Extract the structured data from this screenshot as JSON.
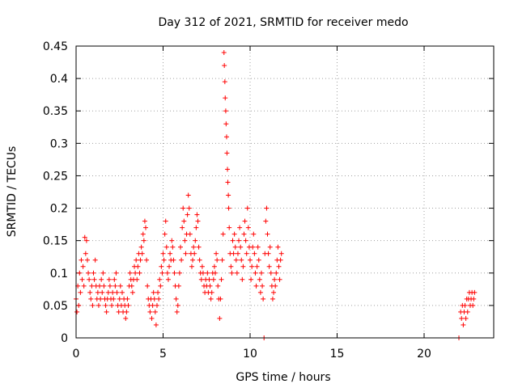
{
  "chart_data": {
    "type": "scatter",
    "title": "Day 312 of 2021, SRMTID for receiver medo",
    "xlabel": "GPS time / hours",
    "ylabel": "SRMTID / TECUs",
    "xlim": [
      0,
      24
    ],
    "ylim": [
      0,
      0.45
    ],
    "xticks": [
      0,
      5,
      10,
      15,
      20
    ],
    "xtick_labels": [
      "0",
      "5",
      "10",
      "15",
      "20"
    ],
    "yticks": [
      0,
      0.05,
      0.1,
      0.15,
      0.2,
      0.25,
      0.3,
      0.35,
      0.4,
      0.45
    ],
    "ytick_labels": [
      "0",
      "0.05",
      "0.1",
      "0.15",
      "0.2",
      "0.25",
      "0.3",
      "0.35",
      "0.4",
      "0.45"
    ],
    "grid": true,
    "marker": "+",
    "color": "#ff0000",
    "series": [
      {
        "name": "SRMTID",
        "points": [
          [
            0.0,
            0.06
          ],
          [
            0.05,
            0.04
          ],
          [
            0.1,
            0.08
          ],
          [
            0.15,
            0.05
          ],
          [
            0.2,
            0.1
          ],
          [
            0.25,
            0.07
          ],
          [
            0.3,
            0.12
          ],
          [
            0.35,
            0.09
          ],
          [
            0.4,
            0.11
          ],
          [
            0.45,
            0.08
          ],
          [
            0.5,
            0.155
          ],
          [
            0.55,
            0.13
          ],
          [
            0.6,
            0.15
          ],
          [
            0.65,
            0.12
          ],
          [
            0.7,
            0.1
          ],
          [
            0.75,
            0.09
          ],
          [
            0.8,
            0.07
          ],
          [
            0.85,
            0.06
          ],
          [
            0.9,
            0.08
          ],
          [
            0.95,
            0.05
          ],
          [
            1.0,
            0.1
          ],
          [
            1.05,
            0.09
          ],
          [
            1.1,
            0.12
          ],
          [
            1.15,
            0.08
          ],
          [
            1.2,
            0.06
          ],
          [
            1.25,
            0.07
          ],
          [
            1.3,
            0.05
          ],
          [
            1.35,
            0.08
          ],
          [
            1.4,
            0.06
          ],
          [
            1.45,
            0.09
          ],
          [
            1.5,
            0.07
          ],
          [
            1.55,
            0.1
          ],
          [
            1.6,
            0.08
          ],
          [
            1.65,
            0.06
          ],
          [
            1.7,
            0.05
          ],
          [
            1.75,
            0.04
          ],
          [
            1.8,
            0.06
          ],
          [
            1.85,
            0.07
          ],
          [
            1.9,
            0.09
          ],
          [
            1.95,
            0.08
          ],
          [
            2.0,
            0.06
          ],
          [
            2.05,
            0.05
          ],
          [
            2.1,
            0.07
          ],
          [
            2.15,
            0.06
          ],
          [
            2.2,
            0.09
          ],
          [
            2.25,
            0.08
          ],
          [
            2.3,
            0.1
          ],
          [
            2.35,
            0.07
          ],
          [
            2.4,
            0.05
          ],
          [
            2.45,
            0.04
          ],
          [
            2.5,
            0.06
          ],
          [
            2.55,
            0.08
          ],
          [
            2.6,
            0.05
          ],
          [
            2.65,
            0.07
          ],
          [
            2.7,
            0.04
          ],
          [
            2.75,
            0.06
          ],
          [
            2.8,
            0.05
          ],
          [
            2.85,
            0.03
          ],
          [
            2.9,
            0.04
          ],
          [
            2.95,
            0.06
          ],
          [
            3.0,
            0.05
          ],
          [
            3.05,
            0.08
          ],
          [
            3.1,
            0.1
          ],
          [
            3.15,
            0.09
          ],
          [
            3.2,
            0.08
          ],
          [
            3.25,
            0.07
          ],
          [
            3.3,
            0.09
          ],
          [
            3.35,
            0.11
          ],
          [
            3.4,
            0.1
          ],
          [
            3.45,
            0.12
          ],
          [
            3.5,
            0.09
          ],
          [
            3.55,
            0.11
          ],
          [
            3.6,
            0.13
          ],
          [
            3.65,
            0.1
          ],
          [
            3.7,
            0.12
          ],
          [
            3.75,
            0.14
          ],
          [
            3.8,
            0.13
          ],
          [
            3.85,
            0.16
          ],
          [
            3.9,
            0.15
          ],
          [
            3.95,
            0.18
          ],
          [
            4.0,
            0.17
          ],
          [
            4.05,
            0.12
          ],
          [
            4.1,
            0.08
          ],
          [
            4.15,
            0.06
          ],
          [
            4.2,
            0.05
          ],
          [
            4.25,
            0.04
          ],
          [
            4.3,
            0.06
          ],
          [
            4.35,
            0.03
          ],
          [
            4.4,
            0.05
          ],
          [
            4.45,
            0.07
          ],
          [
            4.5,
            0.06
          ],
          [
            4.55,
            0.04
          ],
          [
            4.6,
            0.02
          ],
          [
            4.65,
            0.05
          ],
          [
            4.7,
            0.07
          ],
          [
            4.75,
            0.06
          ],
          [
            4.8,
            0.09
          ],
          [
            4.85,
            0.08
          ],
          [
            4.9,
            0.11
          ],
          [
            4.95,
            0.1
          ],
          [
            5.0,
            0.13
          ],
          [
            5.05,
            0.12
          ],
          [
            5.1,
            0.16
          ],
          [
            5.15,
            0.18
          ],
          [
            5.2,
            0.14
          ],
          [
            5.25,
            0.1
          ],
          [
            5.3,
            0.09
          ],
          [
            5.35,
            0.11
          ],
          [
            5.4,
            0.13
          ],
          [
            5.45,
            0.12
          ],
          [
            5.5,
            0.15
          ],
          [
            5.55,
            0.14
          ],
          [
            5.6,
            0.12
          ],
          [
            5.65,
            0.1
          ],
          [
            5.7,
            0.08
          ],
          [
            5.75,
            0.06
          ],
          [
            5.8,
            0.04
          ],
          [
            5.85,
            0.05
          ],
          [
            5.9,
            0.08
          ],
          [
            5.95,
            0.1
          ],
          [
            6.0,
            0.14
          ],
          [
            6.05,
            0.12
          ],
          [
            6.1,
            0.17
          ],
          [
            6.15,
            0.2
          ],
          [
            6.2,
            0.18
          ],
          [
            6.25,
            0.15
          ],
          [
            6.3,
            0.13
          ],
          [
            6.35,
            0.16
          ],
          [
            6.4,
            0.19
          ],
          [
            6.45,
            0.22
          ],
          [
            6.5,
            0.2
          ],
          [
            6.55,
            0.16
          ],
          [
            6.6,
            0.13
          ],
          [
            6.65,
            0.11
          ],
          [
            6.7,
            0.12
          ],
          [
            6.75,
            0.14
          ],
          [
            6.8,
            0.13
          ],
          [
            6.85,
            0.15
          ],
          [
            6.9,
            0.17
          ],
          [
            6.95,
            0.19
          ],
          [
            7.0,
            0.18
          ],
          [
            7.05,
            0.14
          ],
          [
            7.1,
            0.12
          ],
          [
            7.15,
            0.1
          ],
          [
            7.2,
            0.09
          ],
          [
            7.25,
            0.11
          ],
          [
            7.3,
            0.1
          ],
          [
            7.35,
            0.08
          ],
          [
            7.4,
            0.07
          ],
          [
            7.45,
            0.09
          ],
          [
            7.5,
            0.08
          ],
          [
            7.55,
            0.1
          ],
          [
            7.6,
            0.07
          ],
          [
            7.65,
            0.09
          ],
          [
            7.7,
            0.08
          ],
          [
            7.75,
            0.06
          ],
          [
            7.8,
            0.07
          ],
          [
            7.85,
            0.1
          ],
          [
            7.9,
            0.09
          ],
          [
            7.95,
            0.11
          ],
          [
            8.0,
            0.1
          ],
          [
            8.05,
            0.13
          ],
          [
            8.1,
            0.12
          ],
          [
            8.15,
            0.08
          ],
          [
            8.2,
            0.06
          ],
          [
            8.25,
            0.03
          ],
          [
            8.3,
            0.06
          ],
          [
            8.35,
            0.09
          ],
          [
            8.4,
            0.12
          ],
          [
            8.45,
            0.16
          ],
          [
            8.5,
            0.44
          ],
          [
            8.52,
            0.42
          ],
          [
            8.55,
            0.395
          ],
          [
            8.57,
            0.37
          ],
          [
            8.6,
            0.35
          ],
          [
            8.62,
            0.33
          ],
          [
            8.65,
            0.31
          ],
          [
            8.67,
            0.285
          ],
          [
            8.7,
            0.26
          ],
          [
            8.72,
            0.24
          ],
          [
            8.75,
            0.22
          ],
          [
            8.77,
            0.2
          ],
          [
            8.8,
            0.17
          ],
          [
            8.85,
            0.13
          ],
          [
            8.9,
            0.11
          ],
          [
            8.95,
            0.1
          ],
          [
            9.0,
            0.15
          ],
          [
            9.05,
            0.13
          ],
          [
            9.1,
            0.16
          ],
          [
            9.15,
            0.14
          ],
          [
            9.2,
            0.12
          ],
          [
            9.25,
            0.1
          ],
          [
            9.3,
            0.13
          ],
          [
            9.35,
            0.15
          ],
          [
            9.4,
            0.17
          ],
          [
            9.45,
            0.14
          ],
          [
            9.5,
            0.12
          ],
          [
            9.55,
            0.09
          ],
          [
            9.6,
            0.11
          ],
          [
            9.65,
            0.16
          ],
          [
            9.7,
            0.18
          ],
          [
            9.75,
            0.15
          ],
          [
            9.8,
            0.13
          ],
          [
            9.85,
            0.2
          ],
          [
            9.9,
            0.17
          ],
          [
            9.95,
            0.14
          ],
          [
            10.0,
            0.12
          ],
          [
            10.05,
            0.09
          ],
          [
            10.1,
            0.11
          ],
          [
            10.15,
            0.14
          ],
          [
            10.2,
            0.16
          ],
          [
            10.25,
            0.13
          ],
          [
            10.3,
            0.1
          ],
          [
            10.35,
            0.08
          ],
          [
            10.4,
            0.11
          ],
          [
            10.45,
            0.14
          ],
          [
            10.5,
            0.12
          ],
          [
            10.55,
            0.09
          ],
          [
            10.6,
            0.07
          ],
          [
            10.65,
            0.1
          ],
          [
            10.7,
            0.08
          ],
          [
            10.75,
            0.06
          ],
          [
            10.8,
            0.0
          ],
          [
            10.85,
            0.13
          ],
          [
            10.9,
            0.18
          ],
          [
            10.95,
            0.2
          ],
          [
            11.0,
            0.16
          ],
          [
            11.05,
            0.13
          ],
          [
            11.1,
            0.11
          ],
          [
            11.15,
            0.14
          ],
          [
            11.2,
            0.1
          ],
          [
            11.25,
            0.08
          ],
          [
            11.3,
            0.06
          ],
          [
            11.35,
            0.07
          ],
          [
            11.4,
            0.09
          ],
          [
            11.45,
            0.08
          ],
          [
            11.5,
            0.1
          ],
          [
            11.55,
            0.12
          ],
          [
            11.6,
            0.14
          ],
          [
            11.65,
            0.11
          ],
          [
            11.7,
            0.09
          ],
          [
            11.75,
            0.12
          ],
          [
            11.8,
            0.13
          ],
          [
            22.0,
            0.0
          ],
          [
            22.1,
            0.04
          ],
          [
            22.15,
            0.03
          ],
          [
            22.2,
            0.05
          ],
          [
            22.25,
            0.02
          ],
          [
            22.3,
            0.04
          ],
          [
            22.35,
            0.05
          ],
          [
            22.4,
            0.03
          ],
          [
            22.45,
            0.06
          ],
          [
            22.5,
            0.04
          ],
          [
            22.55,
            0.06
          ],
          [
            22.6,
            0.07
          ],
          [
            22.65,
            0.05
          ],
          [
            22.7,
            0.06
          ],
          [
            22.75,
            0.07
          ],
          [
            22.8,
            0.05
          ],
          [
            22.85,
            0.06
          ],
          [
            22.9,
            0.07
          ]
        ]
      }
    ]
  }
}
